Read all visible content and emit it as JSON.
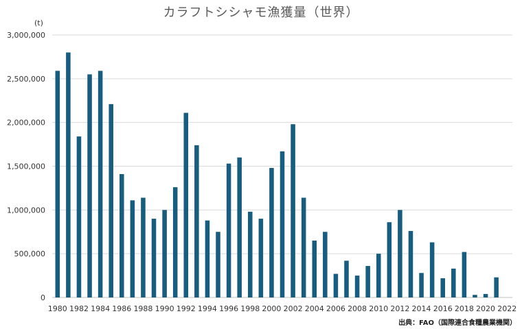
{
  "chart_data": {
    "type": "bar",
    "title": "カラフトシシャモ漁獲量（世界）",
    "y_unit": "(t)",
    "source": "出典：FAO（国際連合食糧農業機関）",
    "x_tick_labels": [
      "1980",
      "1982",
      "1984",
      "1986",
      "1988",
      "1990",
      "1992",
      "1994",
      "1996",
      "1998",
      "2000",
      "2002",
      "2004",
      "2006",
      "2008",
      "2010",
      "2012",
      "2014",
      "2016",
      "2018",
      "2020",
      "2022"
    ],
    "y_tick_labels": [
      "0",
      "500,000",
      "1,000,000",
      "1,500,000",
      "2,000,000",
      "2,500,000",
      "3,000,000"
    ],
    "ylim": [
      0,
      3000000
    ],
    "grid": true,
    "bar_color": "#175D80",
    "categories": [
      1980,
      1981,
      1982,
      1983,
      1984,
      1985,
      1986,
      1987,
      1988,
      1989,
      1990,
      1991,
      1992,
      1993,
      1994,
      1995,
      1996,
      1997,
      1998,
      1999,
      2000,
      2001,
      2002,
      2003,
      2004,
      2005,
      2006,
      2007,
      2008,
      2009,
      2010,
      2011,
      2012,
      2013,
      2014,
      2015,
      2016,
      2017,
      2018,
      2019,
      2020,
      2021,
      2022
    ],
    "values": [
      2590000,
      2800000,
      1840000,
      2550000,
      2590000,
      2210000,
      1410000,
      1110000,
      1140000,
      900000,
      1000000,
      1260000,
      2110000,
      1740000,
      880000,
      750000,
      1530000,
      1600000,
      980000,
      900000,
      1480000,
      1670000,
      1980000,
      1140000,
      650000,
      750000,
      270000,
      420000,
      250000,
      360000,
      500000,
      860000,
      1000000,
      760000,
      280000,
      630000,
      220000,
      330000,
      520000,
      30000,
      40000,
      230000,
      null
    ]
  }
}
